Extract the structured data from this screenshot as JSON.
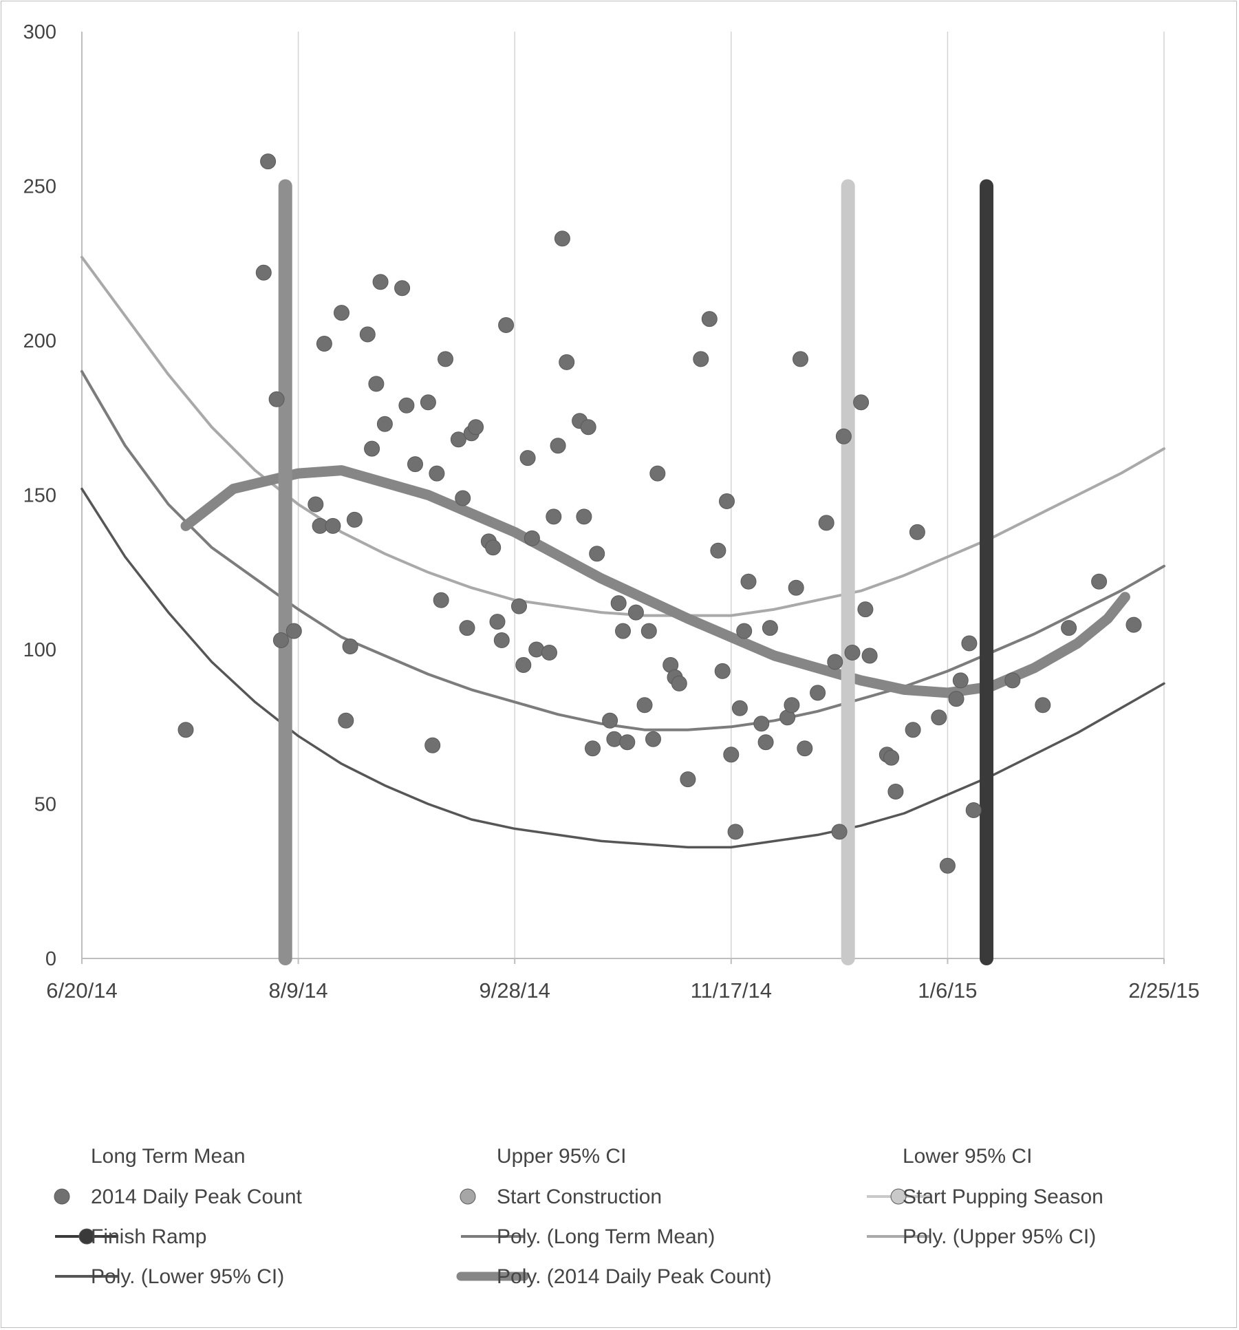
{
  "chart_data": {
    "type": "scatter",
    "title": "",
    "xlabel": "",
    "ylabel": "",
    "xlim_days": [
      0,
      250
    ],
    "ylim": [
      0,
      300
    ],
    "x_ticks": [
      {
        "day": 0,
        "label": "6/20/14"
      },
      {
        "day": 50,
        "label": "8/9/14"
      },
      {
        "day": 100,
        "label": "9/28/14"
      },
      {
        "day": 150,
        "label": "11/17/14"
      },
      {
        "day": 200,
        "label": "1/6/15"
      },
      {
        "day": 250,
        "label": "2/25/15"
      }
    ],
    "y_ticks": [
      0,
      50,
      100,
      150,
      200,
      250,
      300
    ],
    "series": [
      {
        "name": "2014 Daily Peak Count",
        "kind": "points",
        "color": "#707070",
        "points": [
          [
            24,
            74
          ],
          [
            42,
            222
          ],
          [
            43,
            258
          ],
          [
            45,
            181
          ],
          [
            46,
            103
          ],
          [
            49,
            106
          ],
          [
            54,
            147
          ],
          [
            55,
            140
          ],
          [
            56,
            199
          ],
          [
            58,
            140
          ],
          [
            60,
            209
          ],
          [
            61,
            77
          ],
          [
            62,
            101
          ],
          [
            63,
            142
          ],
          [
            66,
            202
          ],
          [
            67,
            165
          ],
          [
            68,
            186
          ],
          [
            69,
            219
          ],
          [
            70,
            173
          ],
          [
            74,
            217
          ],
          [
            75,
            179
          ],
          [
            77,
            160
          ],
          [
            80,
            180
          ],
          [
            81,
            69
          ],
          [
            82,
            157
          ],
          [
            83,
            116
          ],
          [
            84,
            194
          ],
          [
            87,
            168
          ],
          [
            88,
            149
          ],
          [
            89,
            107
          ],
          [
            90,
            170
          ],
          [
            91,
            172
          ],
          [
            94,
            135
          ],
          [
            95,
            133
          ],
          [
            96,
            109
          ],
          [
            97,
            103
          ],
          [
            98,
            205
          ],
          [
            101,
            114
          ],
          [
            102,
            95
          ],
          [
            103,
            162
          ],
          [
            104,
            136
          ],
          [
            105,
            100
          ],
          [
            108,
            99
          ],
          [
            109,
            143
          ],
          [
            110,
            166
          ],
          [
            111,
            233
          ],
          [
            112,
            193
          ],
          [
            115,
            174
          ],
          [
            116,
            143
          ],
          [
            117,
            172
          ],
          [
            118,
            68
          ],
          [
            119,
            131
          ],
          [
            122,
            77
          ],
          [
            123,
            71
          ],
          [
            124,
            115
          ],
          [
            125,
            106
          ],
          [
            126,
            70
          ],
          [
            128,
            112
          ],
          [
            130,
            82
          ],
          [
            131,
            106
          ],
          [
            132,
            71
          ],
          [
            133,
            157
          ],
          [
            136,
            95
          ],
          [
            137,
            91
          ],
          [
            138,
            89
          ],
          [
            140,
            58
          ],
          [
            143,
            194
          ],
          [
            145,
            207
          ],
          [
            147,
            132
          ],
          [
            148,
            93
          ],
          [
            149,
            148
          ],
          [
            150,
            66
          ],
          [
            151,
            41
          ],
          [
            152,
            81
          ],
          [
            153,
            106
          ],
          [
            154,
            122
          ],
          [
            157,
            76
          ],
          [
            158,
            70
          ],
          [
            159,
            107
          ],
          [
            163,
            78
          ],
          [
            164,
            82
          ],
          [
            165,
            120
          ],
          [
            166,
            194
          ],
          [
            167,
            68
          ],
          [
            170,
            86
          ],
          [
            172,
            141
          ],
          [
            174,
            96
          ],
          [
            175,
            41
          ],
          [
            176,
            169
          ],
          [
            178,
            99
          ],
          [
            180,
            180
          ],
          [
            181,
            113
          ],
          [
            182,
            98
          ],
          [
            186,
            66
          ],
          [
            187,
            65
          ],
          [
            188,
            54
          ],
          [
            192,
            74
          ],
          [
            193,
            138
          ],
          [
            200,
            30
          ],
          [
            198,
            78
          ],
          [
            202,
            84
          ],
          [
            203,
            90
          ],
          [
            205,
            102
          ],
          [
            206,
            48
          ],
          [
            215,
            90
          ],
          [
            222,
            82
          ],
          [
            228,
            107
          ],
          [
            235,
            122
          ],
          [
            243,
            108
          ]
        ]
      },
      {
        "name": "Poly. (2014 Daily Peak Count)",
        "kind": "line",
        "color": "#868686",
        "points": [
          [
            24,
            140
          ],
          [
            35,
            152
          ],
          [
            50,
            157
          ],
          [
            60,
            158
          ],
          [
            80,
            150
          ],
          [
            100,
            138
          ],
          [
            120,
            123
          ],
          [
            140,
            110
          ],
          [
            160,
            98
          ],
          [
            180,
            90
          ],
          [
            190,
            87
          ],
          [
            200,
            86
          ],
          [
            210,
            88
          ],
          [
            220,
            94
          ],
          [
            230,
            102
          ],
          [
            237,
            110
          ],
          [
            241,
            117
          ]
        ]
      },
      {
        "name": "Poly. (Upper 95% CI)",
        "kind": "line",
        "color": "#a9a9a9",
        "points": [
          [
            0,
            227
          ],
          [
            10,
            208
          ],
          [
            20,
            189
          ],
          [
            30,
            172
          ],
          [
            40,
            158
          ],
          [
            50,
            147
          ],
          [
            60,
            138
          ],
          [
            70,
            131
          ],
          [
            80,
            125
          ],
          [
            90,
            120
          ],
          [
            100,
            116
          ],
          [
            110,
            114
          ],
          [
            120,
            112
          ],
          [
            130,
            111
          ],
          [
            140,
            111
          ],
          [
            150,
            111
          ],
          [
            160,
            113
          ],
          [
            170,
            116
          ],
          [
            180,
            119
          ],
          [
            190,
            124
          ],
          [
            200,
            130
          ],
          [
            210,
            136
          ],
          [
            220,
            143
          ],
          [
            230,
            150
          ],
          [
            240,
            157
          ],
          [
            250,
            165
          ]
        ]
      },
      {
        "name": "Poly. (Long Term Mean)",
        "kind": "line",
        "color": "#7c7c7c",
        "points": [
          [
            0,
            190
          ],
          [
            10,
            166
          ],
          [
            20,
            147
          ],
          [
            30,
            133
          ],
          [
            40,
            123
          ],
          [
            50,
            113
          ],
          [
            60,
            104
          ],
          [
            70,
            98
          ],
          [
            80,
            92
          ],
          [
            90,
            87
          ],
          [
            100,
            83
          ],
          [
            110,
            79
          ],
          [
            120,
            76
          ],
          [
            130,
            74
          ],
          [
            140,
            74
          ],
          [
            150,
            75
          ],
          [
            160,
            77
          ],
          [
            170,
            80
          ],
          [
            180,
            84
          ],
          [
            190,
            88
          ],
          [
            200,
            93
          ],
          [
            210,
            99
          ],
          [
            220,
            105
          ],
          [
            230,
            112
          ],
          [
            240,
            119
          ],
          [
            250,
            127
          ]
        ]
      },
      {
        "name": "Poly. (Lower 95% CI)",
        "kind": "line",
        "color": "#565656",
        "points": [
          [
            0,
            152
          ],
          [
            10,
            130
          ],
          [
            20,
            112
          ],
          [
            30,
            96
          ],
          [
            40,
            83
          ],
          [
            50,
            72
          ],
          [
            60,
            63
          ],
          [
            70,
            56
          ],
          [
            80,
            50
          ],
          [
            90,
            45
          ],
          [
            100,
            42
          ],
          [
            110,
            40
          ],
          [
            120,
            38
          ],
          [
            130,
            37
          ],
          [
            140,
            36
          ],
          [
            150,
            36
          ],
          [
            160,
            38
          ],
          [
            170,
            40
          ],
          [
            180,
            43
          ],
          [
            190,
            47
          ],
          [
            200,
            53
          ],
          [
            210,
            59
          ],
          [
            220,
            66
          ],
          [
            230,
            73
          ],
          [
            240,
            81
          ],
          [
            250,
            89
          ]
        ]
      }
    ],
    "vertical_markers": [
      {
        "name": "Start Construction",
        "day": 47,
        "ymin": 0,
        "ymax": 250,
        "color": "#8f8f8f"
      },
      {
        "name": "Start Pupping Season",
        "day": 177,
        "ymin": 0,
        "ymax": 250,
        "color": "#c9c9c9"
      },
      {
        "name": "Finish Ramp",
        "day": 209,
        "ymin": 0,
        "ymax": 250,
        "color": "#3a3a3a"
      }
    ],
    "legend": [
      {
        "label": "Long Term Mean",
        "symbol": "none",
        "color": "#7c7c7c"
      },
      {
        "label": "Upper 95% CI",
        "symbol": "none",
        "color": "#a9a9a9"
      },
      {
        "label": "Lower 95% CI",
        "symbol": "none",
        "color": "#565656"
      },
      {
        "label": "2014 Daily Peak Count",
        "symbol": "dot",
        "color": "#707070"
      },
      {
        "label": "Start Construction",
        "symbol": "dot",
        "color": "#a6a6a6"
      },
      {
        "label": "Start Pupping Season",
        "symbol": "line-dot",
        "color": "#c9c9c9"
      },
      {
        "label": "Finish Ramp",
        "symbol": "line-dot",
        "color": "#3a3a3a"
      },
      {
        "label": "Poly. (Long Term Mean)",
        "symbol": "line",
        "color": "#7c7c7c"
      },
      {
        "label": "Poly. (Upper 95% CI)",
        "symbol": "line",
        "color": "#a9a9a9"
      },
      {
        "label": "Poly. (Lower 95% CI)",
        "symbol": "line",
        "color": "#565656"
      },
      {
        "label": "Poly. (2014 Daily Peak Count)",
        "symbol": "thick-line",
        "color": "#868686"
      }
    ]
  }
}
